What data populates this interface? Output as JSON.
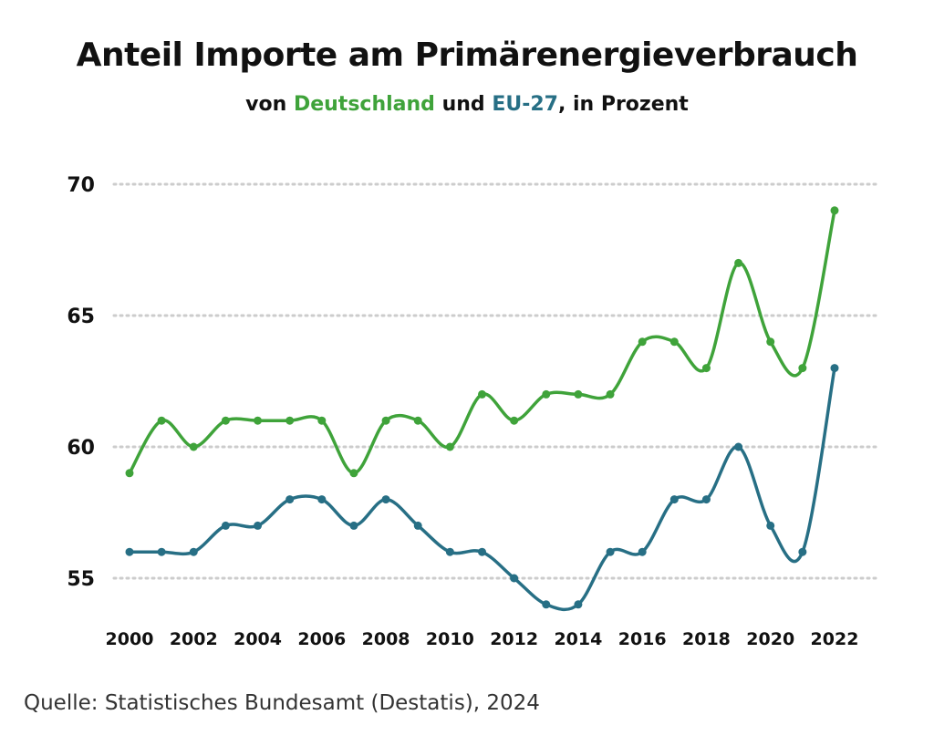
{
  "title": "Anteil Importe am Primärenergieverbrauch",
  "subtitle": {
    "prefix": "von ",
    "series1": "Deutschland",
    "middle": " und ",
    "series2": "EU-27",
    "suffix": ", in Prozent"
  },
  "source": "Quelle: Statistisches Bundesamt (Destatis), 2024",
  "colors": {
    "Deutschland": "#3fa33a",
    "EU-27": "#276f85",
    "grid": "#cccccc"
  },
  "chart_data": {
    "type": "line",
    "title": "Anteil Importe am Primärenergieverbrauch",
    "subtitle": "von Deutschland und EU-27, in Prozent",
    "x": [
      2000,
      2001,
      2002,
      2003,
      2004,
      2005,
      2006,
      2007,
      2008,
      2009,
      2010,
      2011,
      2012,
      2013,
      2014,
      2015,
      2016,
      2017,
      2018,
      2019,
      2020,
      2021,
      2022
    ],
    "series": [
      {
        "name": "Deutschland",
        "values": [
          59,
          61,
          60,
          61,
          61,
          61,
          61,
          59,
          61,
          61,
          60,
          62,
          61,
          62,
          62,
          62,
          64,
          64,
          63,
          67,
          64,
          63,
          69
        ]
      },
      {
        "name": "EU-27",
        "values": [
          56,
          56,
          56,
          57,
          57,
          58,
          58,
          57,
          58,
          57,
          56,
          56,
          55,
          54,
          54,
          56,
          56,
          58,
          58,
          60,
          57,
          56,
          63
        ]
      }
    ],
    "x_ticks": [
      "2000",
      "2002",
      "2004",
      "2006",
      "2008",
      "2010",
      "2012",
      "2014",
      "2016",
      "2018",
      "2020",
      "2022"
    ],
    "y_ticks": [
      "55",
      "60",
      "65",
      "70"
    ],
    "ylim": [
      53.5,
      70
    ],
    "grid": "horizontal dotted",
    "legend": "in subtitle",
    "smooth": true
  }
}
